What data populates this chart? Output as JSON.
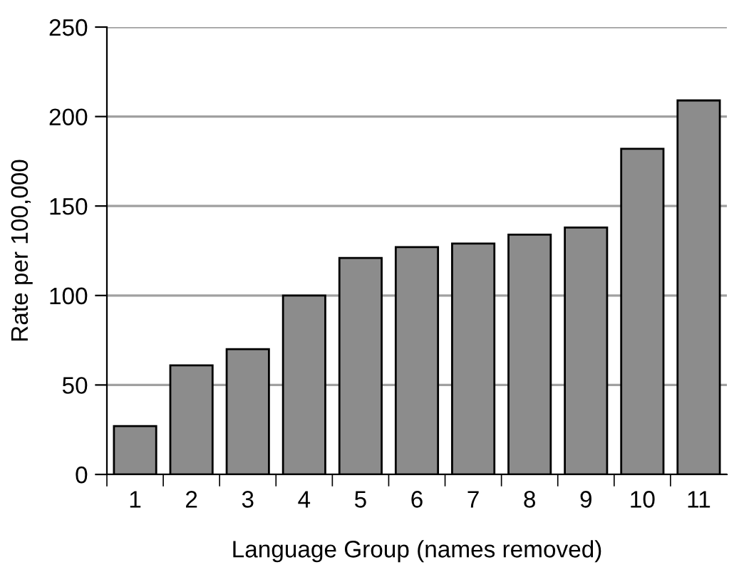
{
  "chart_data": {
    "type": "bar",
    "xlabel": "Language Group (names removed)",
    "ylabel": "Rate per 100,000",
    "categories": [
      "1",
      "2",
      "3",
      "4",
      "5",
      "6",
      "7",
      "8",
      "9",
      "10",
      "11"
    ],
    "values": [
      27,
      61,
      70,
      100,
      121,
      127,
      129,
      134,
      138,
      182,
      209
    ],
    "color": "#8c8c8c",
    "ylim": [
      0,
      250
    ],
    "yticks": [
      0,
      50,
      100,
      150,
      200,
      250
    ],
    "grid": "y"
  }
}
